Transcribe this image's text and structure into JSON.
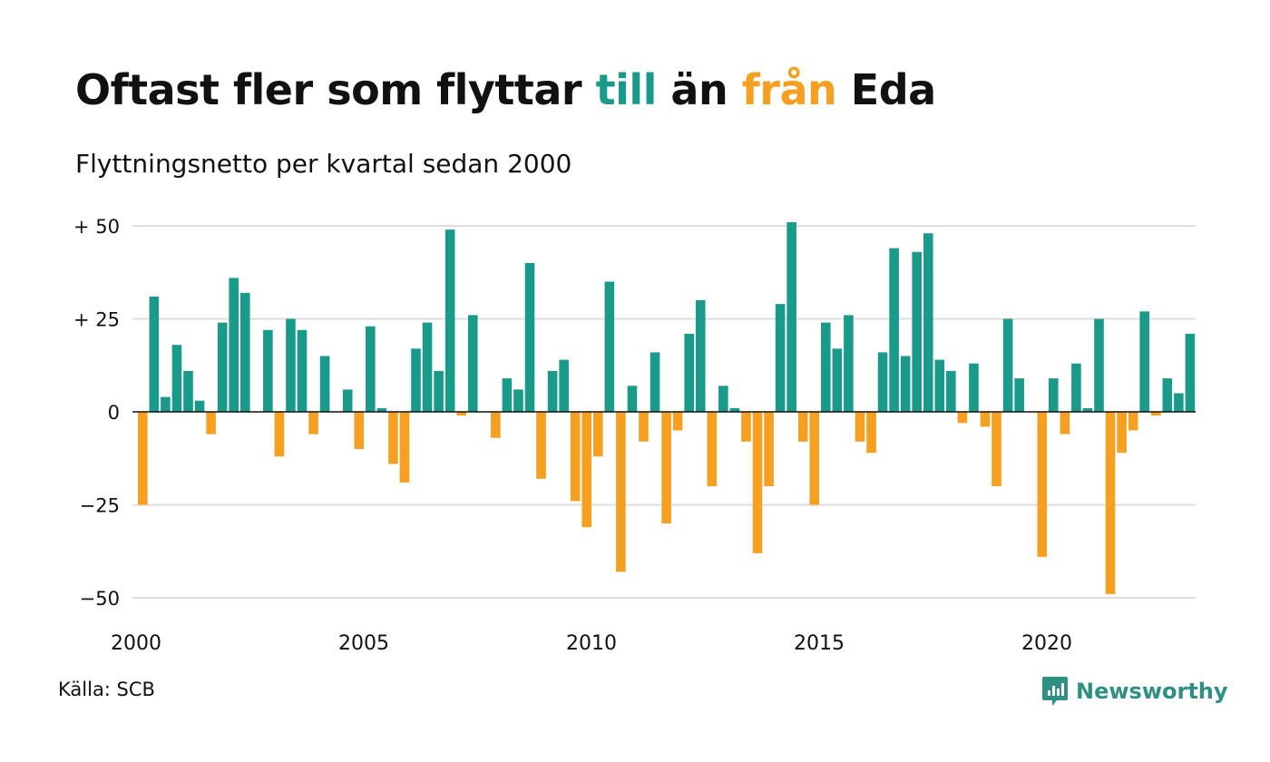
{
  "title_parts": {
    "pre": "Oftast fler som flyttar ",
    "till": "till",
    "mid": " än ",
    "fran": "från",
    "post": " Eda"
  },
  "subtitle": "Flyttningsnetto per kvartal sedan 2000",
  "source": "Källa: SCB",
  "brand": {
    "name": "Newsworthy",
    "icon": "newsworthy-logo-icon"
  },
  "colors": {
    "positive": "#1a9a8a",
    "negative": "#f5a020",
    "title_till": "#1a9a8a",
    "title_fran": "#f5a020",
    "grid": "#dddddd",
    "baseline": "#111111",
    "brand": "#2e8f82"
  },
  "chart_data": {
    "type": "bar",
    "title": "Oftast fler som flyttar till än från Eda",
    "subtitle": "Flyttningsnetto per kvartal sedan 2000",
    "xlabel": "",
    "ylabel": "",
    "ylim": [
      -55,
      55
    ],
    "grid": true,
    "legend": "none",
    "y_ticks": [
      {
        "value": 50,
        "label": "+ 50"
      },
      {
        "value": 25,
        "label": "+ 25"
      },
      {
        "value": 0,
        "label": "0"
      },
      {
        "value": -25,
        "label": "−25"
      },
      {
        "value": -50,
        "label": "−50"
      }
    ],
    "x_ticks": [
      {
        "quarter_index": 0,
        "label": "2000"
      },
      {
        "quarter_index": 20,
        "label": "2005"
      },
      {
        "quarter_index": 40,
        "label": "2010"
      },
      {
        "quarter_index": 60,
        "label": "2015"
      },
      {
        "quarter_index": 80,
        "label": "2020"
      }
    ],
    "start": "2000 Q1",
    "values": [
      -25,
      31,
      4,
      18,
      11,
      3,
      -6,
      24,
      36,
      32,
      0,
      22,
      -12,
      25,
      22,
      -6,
      15,
      0,
      6,
      -10,
      23,
      1,
      -14,
      -19,
      17,
      24,
      11,
      49,
      -1,
      26,
      0,
      -7,
      9,
      6,
      40,
      -18,
      11,
      14,
      -24,
      -31,
      -12,
      35,
      -43,
      7,
      -8,
      16,
      -30,
      -5,
      21,
      30,
      -20,
      7,
      1,
      -8,
      -38,
      -20,
      29,
      51,
      -8,
      -25,
      24,
      17,
      26,
      -8,
      -11,
      16,
      44,
      15,
      43,
      48,
      14,
      11,
      -3,
      13,
      -4,
      -20,
      25,
      9,
      0,
      -39,
      9,
      -6,
      13,
      1,
      25,
      -49,
      -11,
      -5,
      27,
      -1,
      9,
      5,
      21
    ]
  }
}
